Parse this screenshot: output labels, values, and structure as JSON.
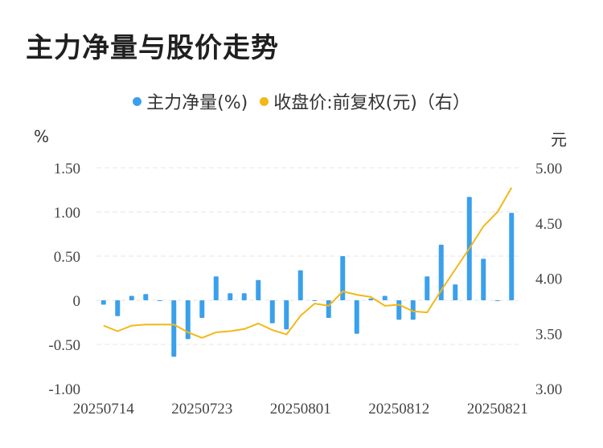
{
  "title": "主力净量与股价走势",
  "legend": {
    "net_label": "主力净量(%)",
    "price_label": "收盘价:前复权(元)（右）"
  },
  "colors": {
    "bar": "#3aa0ec",
    "line": "#f3b719",
    "grid": "#e6e6e6"
  },
  "chart_data": {
    "type": "bar+line",
    "title": "主力净量与股价走势",
    "left_unit": "%",
    "right_unit": "元",
    "left_ylim": [
      -1.0,
      1.5
    ],
    "right_ylim": [
      3.0,
      5.0
    ],
    "left_ticks": [
      "1.50",
      "1.00",
      "0.50",
      "0",
      "-0.50",
      "-1.00"
    ],
    "left_tick_values": [
      1.5,
      1.0,
      0.5,
      0,
      -0.5,
      -1.0
    ],
    "right_ticks": [
      "5.00",
      "4.50",
      "4.00",
      "3.50",
      "3.00"
    ],
    "right_tick_values": [
      5.0,
      4.5,
      4.0,
      3.5,
      3.0
    ],
    "x_labels": [
      "20250714",
      "20250723",
      "20250801",
      "20250812",
      "20250821"
    ],
    "x_label_indices": [
      0,
      7,
      14,
      21,
      28
    ],
    "series": [
      {
        "name": "主力净量(%)",
        "type": "bar",
        "axis": "left",
        "values": [
          -0.05,
          -0.18,
          0.05,
          0.07,
          0.0,
          -0.64,
          -0.44,
          -0.2,
          0.27,
          0.08,
          0.08,
          0.23,
          -0.26,
          -0.33,
          0.34,
          0.0,
          -0.2,
          0.5,
          -0.38,
          0.02,
          0.05,
          -0.22,
          -0.22,
          0.27,
          0.63,
          0.18,
          1.17,
          0.47,
          0.0,
          0.99
        ]
      },
      {
        "name": "收盘价:前复权(元)（右）",
        "type": "line",
        "axis": "right",
        "values": [
          3.57,
          3.52,
          3.57,
          3.58,
          3.58,
          3.58,
          3.51,
          3.46,
          3.51,
          3.52,
          3.54,
          3.59,
          3.53,
          3.49,
          3.66,
          3.77,
          3.75,
          3.88,
          3.85,
          3.83,
          3.75,
          3.76,
          3.7,
          3.69,
          3.89,
          4.08,
          4.27,
          4.47,
          4.6,
          4.82
        ]
      }
    ]
  }
}
